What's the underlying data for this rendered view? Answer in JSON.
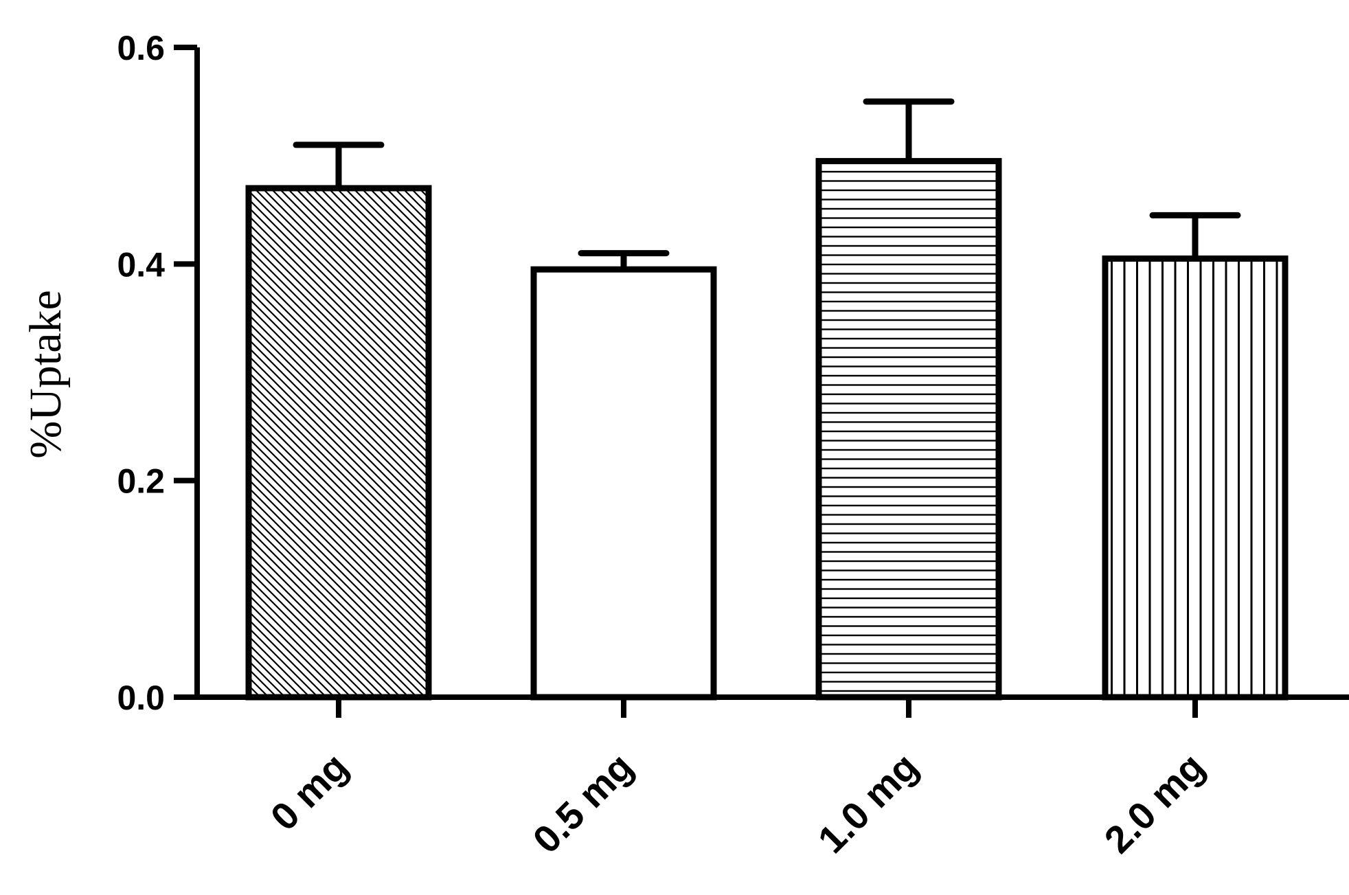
{
  "chart_data": {
    "type": "bar",
    "title": "",
    "xlabel": "",
    "ylabel": "%Uptake",
    "ylim": [
      0,
      0.6
    ],
    "yticks": [
      "0.0",
      "0.2",
      "0.4",
      "0.6"
    ],
    "categories": [
      "0 mg",
      "0.5 mg",
      "1.0 mg",
      "2.0 mg"
    ],
    "values": [
      0.47,
      0.395,
      0.495,
      0.405
    ],
    "errors": [
      0.04,
      0.015,
      0.055,
      0.04
    ],
    "fill_patterns": [
      "diagonal",
      "none",
      "horizontal",
      "vertical"
    ],
    "bar_color": "#000000",
    "grid": false
  }
}
